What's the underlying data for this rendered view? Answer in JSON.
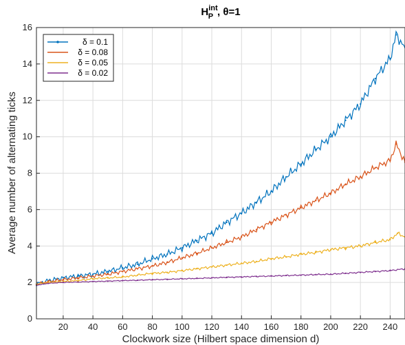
{
  "chart_data": {
    "type": "line",
    "title": {
      "main": "H",
      "superscript": "int",
      "subscript": "P",
      "suffix": ", θ=1"
    },
    "xlabel": "Clockwork size (Hilbert space dimension d)",
    "ylabel": "Average number of alternating ticks",
    "xlim": [
      2,
      250
    ],
    "ylim": [
      0,
      16
    ],
    "xticks": [
      20,
      40,
      60,
      80,
      100,
      120,
      140,
      160,
      180,
      200,
      220,
      240
    ],
    "yticks": [
      0,
      2,
      4,
      6,
      8,
      10,
      12,
      14,
      16
    ],
    "grid": true,
    "legend_position": "top-left",
    "series": [
      {
        "name": "δ = 0.1",
        "color": "#0072BD",
        "marker": "dot",
        "x": [
          2,
          10,
          20,
          30,
          40,
          50,
          60,
          70,
          80,
          90,
          100,
          110,
          120,
          130,
          140,
          150,
          160,
          170,
          180,
          190,
          200,
          210,
          220,
          230,
          240,
          244,
          250
        ],
        "y": [
          1.9,
          2.1,
          2.25,
          2.35,
          2.45,
          2.6,
          2.8,
          3.0,
          3.3,
          3.55,
          3.9,
          4.3,
          4.7,
          5.3,
          5.8,
          6.4,
          7.0,
          7.8,
          8.5,
          9.3,
          10.0,
          10.9,
          11.8,
          13.2,
          14.3,
          15.6,
          14.9
        ]
      },
      {
        "name": "δ = 0.08",
        "color": "#D95319",
        "x": [
          2,
          10,
          20,
          30,
          40,
          50,
          60,
          70,
          80,
          90,
          100,
          110,
          120,
          130,
          140,
          150,
          160,
          170,
          180,
          190,
          200,
          210,
          220,
          230,
          240,
          244,
          250
        ],
        "y": [
          1.9,
          2.05,
          2.15,
          2.25,
          2.35,
          2.45,
          2.6,
          2.75,
          2.9,
          3.1,
          3.35,
          3.6,
          3.9,
          4.2,
          4.5,
          4.9,
          5.3,
          5.7,
          6.1,
          6.5,
          6.9,
          7.4,
          7.8,
          8.3,
          8.7,
          9.6,
          8.6
        ]
      },
      {
        "name": "δ = 0.05",
        "color": "#EDB120",
        "x": [
          2,
          10,
          20,
          30,
          40,
          50,
          60,
          70,
          80,
          90,
          100,
          110,
          120,
          130,
          140,
          150,
          160,
          170,
          180,
          190,
          200,
          210,
          220,
          230,
          240,
          245,
          250
        ],
        "y": [
          1.9,
          2.0,
          2.05,
          2.1,
          2.2,
          2.25,
          2.3,
          2.4,
          2.5,
          2.55,
          2.65,
          2.75,
          2.85,
          2.95,
          3.05,
          3.15,
          3.3,
          3.4,
          3.55,
          3.65,
          3.8,
          3.9,
          4.0,
          4.2,
          4.35,
          4.7,
          4.5
        ]
      },
      {
        "name": "δ = 0.02",
        "color": "#7E2F8E",
        "x": [
          2,
          10,
          20,
          30,
          40,
          50,
          60,
          70,
          80,
          90,
          100,
          110,
          120,
          130,
          140,
          150,
          160,
          170,
          180,
          190,
          200,
          210,
          220,
          230,
          240,
          250
        ],
        "y": [
          1.85,
          1.95,
          2.0,
          2.02,
          2.05,
          2.07,
          2.1,
          2.12,
          2.15,
          2.17,
          2.2,
          2.22,
          2.25,
          2.28,
          2.3,
          2.33,
          2.35,
          2.38,
          2.4,
          2.43,
          2.45,
          2.5,
          2.55,
          2.6,
          2.65,
          2.75
        ]
      }
    ]
  }
}
